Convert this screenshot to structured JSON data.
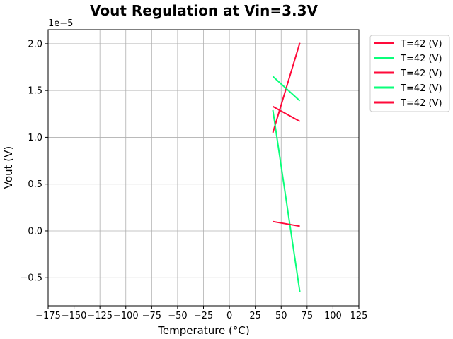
{
  "chart_data": {
    "type": "line",
    "title": "Vout Regulation at Vin=3.3V",
    "xlabel": "Temperature (°C)",
    "ylabel": "Vout (V)",
    "y_offset_text": "1e−5",
    "xlim": [
      -175,
      125
    ],
    "ylim": [
      -8e-06,
      2.15e-05
    ],
    "x_ticks": [
      -175,
      -150,
      -125,
      -100,
      -75,
      -50,
      -25,
      0,
      25,
      50,
      75,
      100,
      125
    ],
    "x_tick_labels": [
      "−175",
      "−150",
      "−125",
      "−100",
      "−75",
      "−50",
      "−25",
      "0",
      "25",
      "50",
      "75",
      "100",
      "125"
    ],
    "y_ticks": [
      -5e-06,
      0,
      5e-06,
      1e-05,
      1.5e-05,
      2e-05
    ],
    "y_tick_labels": [
      "−0.5",
      "0.0",
      "0.5",
      "1.0",
      "1.5",
      "2.0"
    ],
    "grid": true,
    "legend_position": "outside-top-right",
    "series": [
      {
        "name": "T=42 (V)",
        "color": "#ff0a3a",
        "x": [
          42,
          68
        ],
        "y": [
          1.05e-05,
          2.01e-05
        ]
      },
      {
        "name": "T=42 (V)",
        "color": "#0aff7a",
        "x": [
          42,
          68
        ],
        "y": [
          1.65e-05,
          1.39e-05
        ]
      },
      {
        "name": "T=42 (V)",
        "color": "#ff0a3a",
        "x": [
          42,
          68
        ],
        "y": [
          1.33e-05,
          1.17e-05
        ]
      },
      {
        "name": "T=42 (V)",
        "color": "#0aff7a",
        "x": [
          42,
          68
        ],
        "y": [
          1.29e-05,
          -6.5e-06
        ]
      },
      {
        "name": "T=42 (V)",
        "color": "#ff0a3a",
        "x": [
          42,
          68
        ],
        "y": [
          1e-06,
          5e-07
        ]
      }
    ]
  }
}
